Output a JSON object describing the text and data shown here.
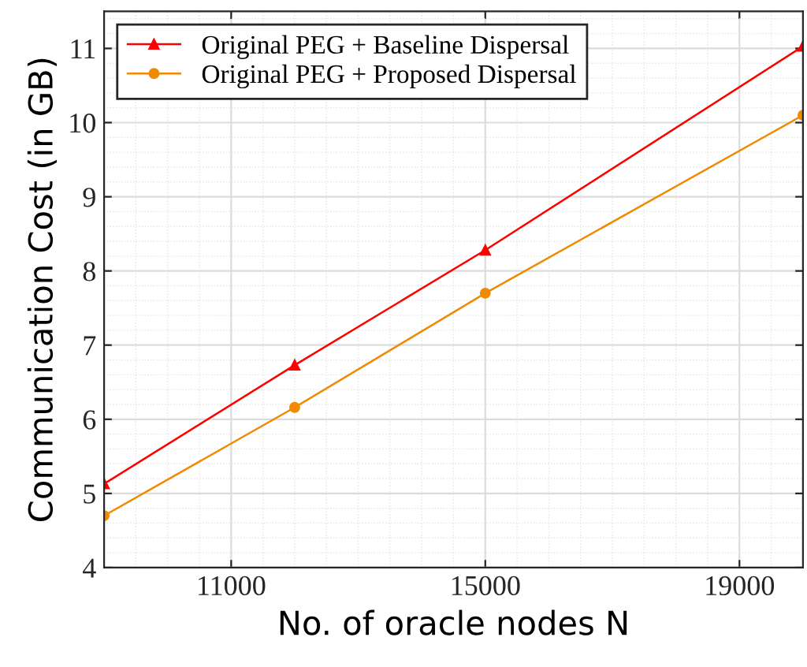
{
  "chart_data": {
    "type": "line",
    "xlabel": "No. of oracle nodes N",
    "ylabel": "Communication Cost (in GB)",
    "x": [
      9000,
      12000,
      15000,
      20000
    ],
    "series": [
      {
        "name": "Original PEG + Baseline Dispersal",
        "color": "#ff0000",
        "marker": "triangle",
        "values": [
          5.13,
          6.73,
          8.28,
          11.03
        ]
      },
      {
        "name": "Original PEG + Proposed Dispersal",
        "color": "#f08a00",
        "marker": "circle",
        "values": [
          4.7,
          6.16,
          7.7,
          10.1
        ]
      }
    ],
    "xlim": [
      9000,
      20000
    ],
    "xticks": [
      11000,
      15000,
      19000
    ],
    "ylim": [
      4,
      11.5
    ],
    "yticks": [
      4,
      5,
      6,
      7,
      8,
      9,
      10,
      11
    ],
    "grid": true,
    "legend": "top left",
    "line_style": "solid"
  }
}
